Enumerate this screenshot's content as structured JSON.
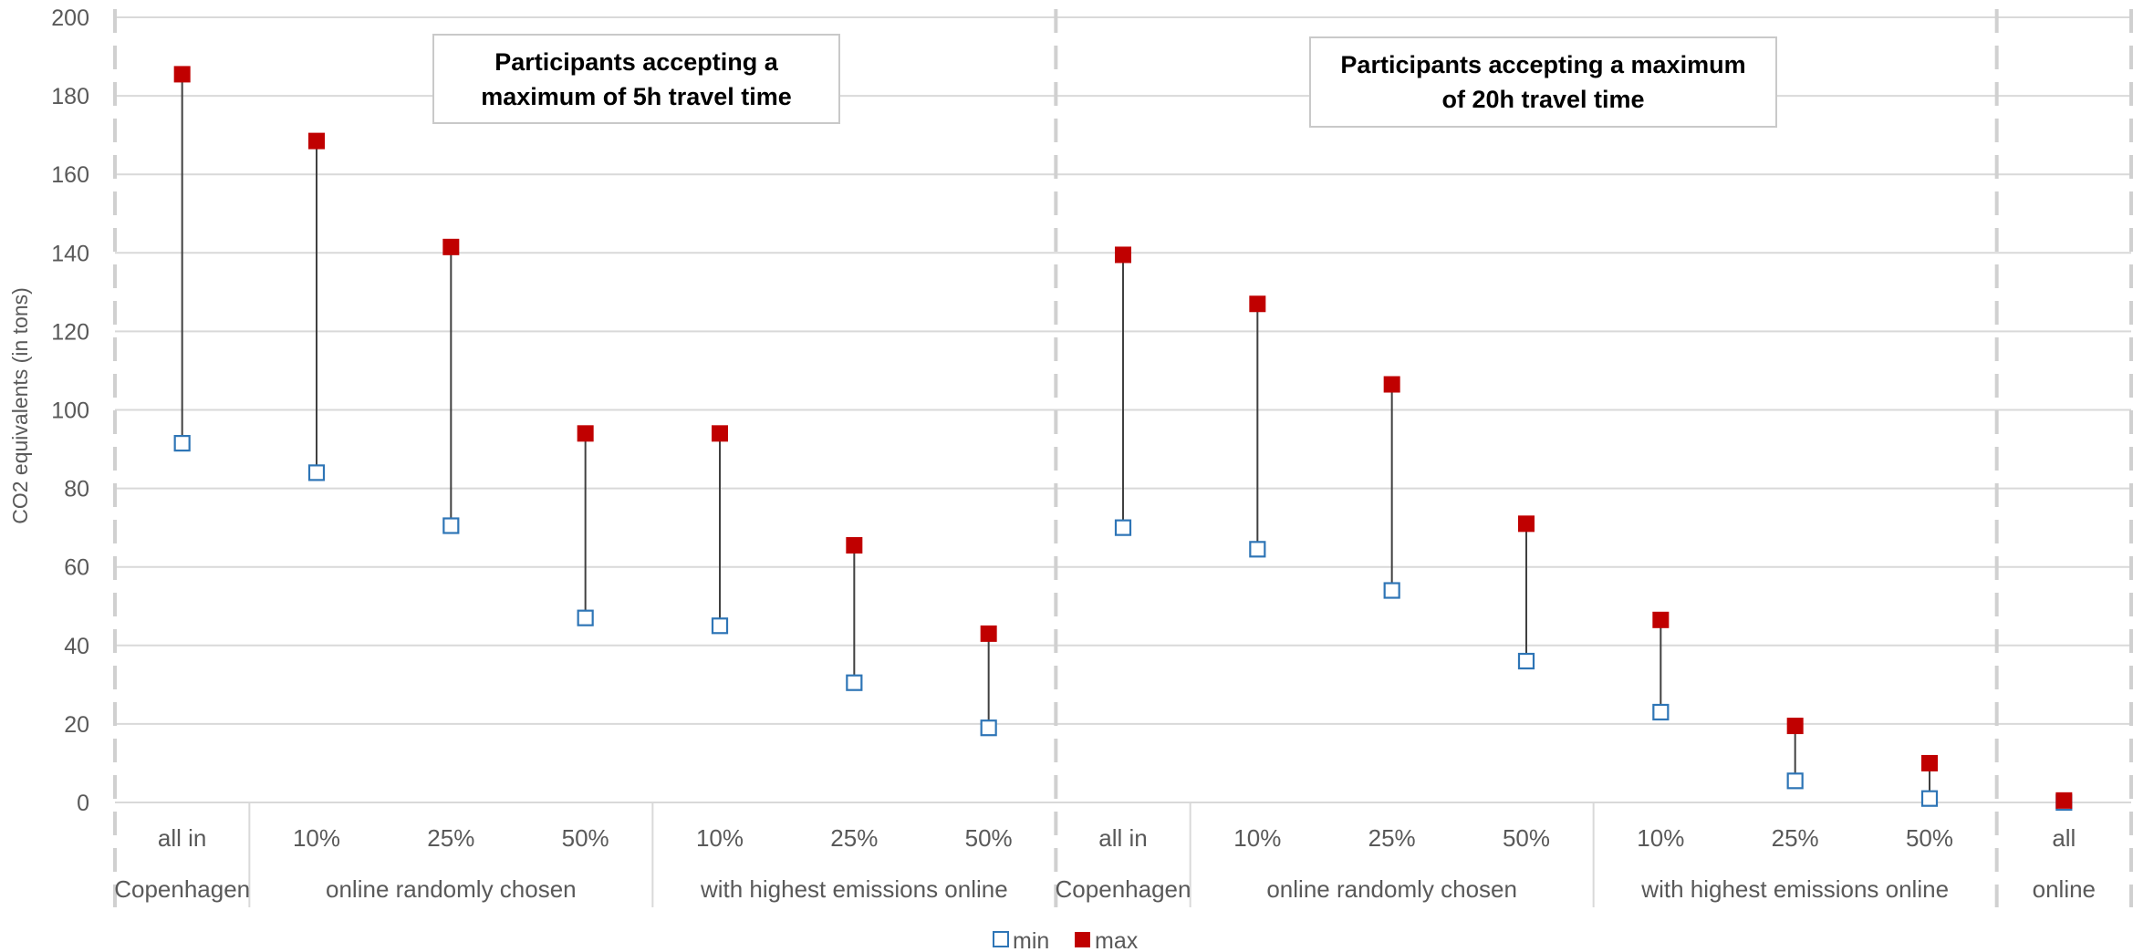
{
  "chart_data": {
    "type": "scatter",
    "subtype": "min-max range (dot plot with connecting lines)",
    "ylabel": "CO2 equivalents (in tons)",
    "ylim": [
      0,
      200
    ],
    "yticks": [
      0,
      20,
      40,
      60,
      80,
      100,
      120,
      140,
      160,
      180,
      200
    ],
    "grid": true,
    "legend": {
      "position": "bottom",
      "entries": [
        "min",
        "max"
      ]
    },
    "colors": {
      "min": "#2e75b6",
      "max": "#c00000",
      "connector": "#404040",
      "grid": "#d9d9d9"
    },
    "sections": [
      {
        "title": "Participants accepting a maximum of 5h travel time",
        "title_lines": [
          "Participants accepting a",
          "maximum of 5h travel time"
        ]
      },
      {
        "title": "Participants accepting a maximum of 20h travel time",
        "title_lines": [
          "Participants accepting a maximum",
          "of 20h travel time"
        ]
      }
    ],
    "categories": [
      {
        "label": "all in",
        "group": "Copenhagen",
        "min": 91.5,
        "max": 185.5
      },
      {
        "label": "10%",
        "group": "online randomly chosen",
        "min": 84,
        "max": 168.5
      },
      {
        "label": "25%",
        "group": "online randomly chosen",
        "min": 70.5,
        "max": 141.5
      },
      {
        "label": "50%",
        "group": "online randomly chosen",
        "min": 47,
        "max": 94
      },
      {
        "label": "10%",
        "group": "with highest emissions online",
        "min": 45,
        "max": 94
      },
      {
        "label": "25%",
        "group": "with highest emissions online",
        "min": 30.5,
        "max": 65.5
      },
      {
        "label": "50%",
        "group": "with highest emissions online",
        "min": 19,
        "max": 43
      },
      {
        "label": "all in",
        "group": "Copenhagen",
        "min": 70,
        "max": 139.5
      },
      {
        "label": "10%",
        "group": "online randomly chosen",
        "min": 64.5,
        "max": 127
      },
      {
        "label": "25%",
        "group": "online randomly chosen",
        "min": 54,
        "max": 106.5
      },
      {
        "label": "50%",
        "group": "online randomly chosen",
        "min": 36,
        "max": 71
      },
      {
        "label": "10%",
        "group": "with highest emissions online",
        "min": 23,
        "max": 46.5
      },
      {
        "label": "25%",
        "group": "with highest emissions online",
        "min": 5.5,
        "max": 19.5
      },
      {
        "label": "50%",
        "group": "with highest emissions online",
        "min": 1,
        "max": 10
      },
      {
        "label": "all",
        "group": "online",
        "min": 0,
        "max": 0.5
      }
    ],
    "groups": [
      {
        "label": "Copenhagen",
        "from": 0,
        "to": 0
      },
      {
        "label": "online randomly chosen",
        "from": 1,
        "to": 3
      },
      {
        "label": "with highest emissions online",
        "from": 4,
        "to": 6
      },
      {
        "label": "Copenhagen",
        "from": 7,
        "to": 7
      },
      {
        "label": "online randomly chosen",
        "from": 8,
        "to": 10
      },
      {
        "label": "with highest emissions online",
        "from": 11,
        "to": 13
      },
      {
        "label": "online",
        "from": 14,
        "to": 14
      }
    ]
  }
}
